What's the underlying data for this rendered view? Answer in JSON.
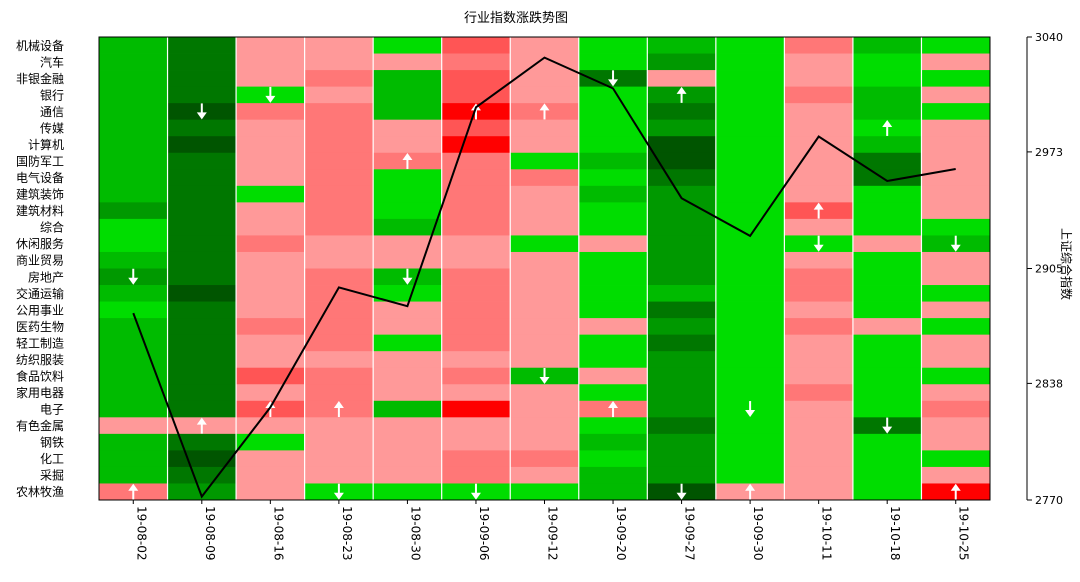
{
  "chart_data": {
    "type": "heatmap",
    "title": "行业指数涨跌势图",
    "ylabel_right": "上证综合指数",
    "x_labels": [
      "19-08-02",
      "19-08-09",
      "19-08-16",
      "19-08-23",
      "19-08-30",
      "19-09-06",
      "19-09-12",
      "19-09-20",
      "19-09-27",
      "19-09-30",
      "19-10-11",
      "19-10-18",
      "19-10-25"
    ],
    "industries": [
      "机械设备",
      "汽车",
      "非银金融",
      "银行",
      "通信",
      "传媒",
      "计算机",
      "国防军工",
      "电气设备",
      "建筑装饰",
      "建筑材料",
      "综合",
      "休闲服务",
      "商业贸易",
      "房地产",
      "交通运输",
      "公用事业",
      "医药生物",
      "轻工制造",
      "纺织服装",
      "食品饮料",
      "家用电器",
      "电子",
      "有色金属",
      "钢铁",
      "化工",
      "采掘",
      "农林牧渔"
    ],
    "right_axis": {
      "ticks": [
        3040,
        2973,
        2905,
        2838,
        2770
      ],
      "ylim": [
        2770,
        3040
      ]
    },
    "color_scale": {
      "G1": "#00ff00",
      "G2": "#00dd00",
      "G3": "#00bb00",
      "G4": "#009900",
      "G5": "#007700",
      "G6": "#005500",
      "R1": "#ff9999",
      "R2": "#ff7777",
      "R3": "#ff5555",
      "R4": "#ff3333",
      "R5": "#ff0000"
    },
    "cell_levels": [
      [
        "G3",
        "G3",
        "G3",
        "G3",
        "G3",
        "G3",
        "G3",
        "G3",
        "G3",
        "G3",
        "G4",
        "G2",
        "G2",
        "G3",
        "G4",
        "G3",
        "G2",
        "G3",
        "G3",
        "G3",
        "G3",
        "G3",
        "G3",
        "R1",
        "G3",
        "G3",
        "G3",
        "R2"
      ],
      [
        "G5",
        "G5",
        "G5",
        "G5",
        "G6",
        "G5",
        "G6",
        "G5",
        "G5",
        "G5",
        "G5",
        "G5",
        "G5",
        "G5",
        "G5",
        "G6",
        "G5",
        "G5",
        "G5",
        "G5",
        "G5",
        "G5",
        "G5",
        "R1",
        "G5",
        "G6",
        "G5",
        "G4"
      ],
      [
        "R1",
        "R1",
        "R1",
        "G2",
        "R2",
        "R1",
        "R1",
        "R1",
        "R1",
        "G2",
        "R1",
        "R1",
        "R2",
        "R1",
        "R1",
        "R1",
        "R1",
        "R2",
        "R1",
        "R1",
        "R3",
        "R1",
        "R3",
        "R1",
        "G2",
        "R1",
        "R1",
        "R1"
      ],
      [
        "R1",
        "R1",
        "R2",
        "R1",
        "R2",
        "R2",
        "R2",
        "R2",
        "R2",
        "R2",
        "R2",
        "R2",
        "R1",
        "R1",
        "R2",
        "R2",
        "R2",
        "R2",
        "R2",
        "R1",
        "R2",
        "R2",
        "R2",
        "R1",
        "R1",
        "R1",
        "R1",
        "G2"
      ],
      [
        "G2",
        "R1",
        "G3",
        "G3",
        "G3",
        "R1",
        "R1",
        "R2",
        "G2",
        "G2",
        "G2",
        "G3",
        "R1",
        "R1",
        "G3",
        "G2",
        "R1",
        "R1",
        "G2",
        "R1",
        "R1",
        "R1",
        "G3",
        "R1",
        "R1",
        "R1",
        "R1",
        "G2"
      ],
      [
        "R3",
        "R2",
        "R3",
        "R3",
        "R5",
        "R3",
        "R5",
        "R2",
        "R2",
        "R2",
        "R2",
        "R2",
        "R1",
        "R1",
        "R2",
        "R2",
        "R2",
        "R2",
        "R2",
        "R1",
        "R2",
        "R1",
        "R5",
        "R1",
        "R1",
        "R2",
        "R2",
        "G2"
      ],
      [
        "R1",
        "R1",
        "R1",
        "R1",
        "R2",
        "R1",
        "R1",
        "G2",
        "R2",
        "R1",
        "R1",
        "R1",
        "G2",
        "R1",
        "R1",
        "R1",
        "R1",
        "R1",
        "R1",
        "R1",
        "G3",
        "R1",
        "R1",
        "R1",
        "R1",
        "R2",
        "R1",
        "G2"
      ],
      [
        "G2",
        "G2",
        "G5",
        "G2",
        "G2",
        "G2",
        "G2",
        "G3",
        "G2",
        "G3",
        "G2",
        "G2",
        "R1",
        "G2",
        "G2",
        "G2",
        "G2",
        "R1",
        "G2",
        "G2",
        "R1",
        "G2",
        "R2",
        "G2",
        "G3",
        "G2",
        "G3",
        "G3"
      ],
      [
        "G3",
        "G4",
        "R1",
        "G4",
        "G5",
        "G4",
        "G6",
        "G6",
        "G5",
        "G4",
        "G4",
        "G4",
        "G4",
        "G4",
        "G4",
        "G3",
        "G5",
        "G4",
        "G5",
        "G4",
        "G4",
        "G4",
        "G4",
        "G5",
        "G4",
        "G4",
        "G4",
        "G6"
      ],
      [
        "G2",
        "G2",
        "G2",
        "G2",
        "G2",
        "G2",
        "G2",
        "G2",
        "G2",
        "G2",
        "G2",
        "G2",
        "G2",
        "G2",
        "G2",
        "G2",
        "G2",
        "G2",
        "G2",
        "G2",
        "G2",
        "G2",
        "G2",
        "G2",
        "G2",
        "G2",
        "G2",
        "R1"
      ],
      [
        "R2",
        "R1",
        "R1",
        "R2",
        "R1",
        "R1",
        "R1",
        "R1",
        "R1",
        "R1",
        "R3",
        "R1",
        "G2",
        "R1",
        "R2",
        "R2",
        "R1",
        "R2",
        "R1",
        "R1",
        "R1",
        "R2",
        "R1",
        "R1",
        "R1",
        "R1",
        "R1",
        "R1"
      ],
      [
        "G3",
        "G2",
        "G2",
        "G3",
        "G3",
        "G2",
        "G3",
        "G5",
        "G5",
        "G2",
        "G2",
        "G2",
        "R1",
        "G2",
        "G2",
        "G2",
        "G2",
        "R1",
        "G2",
        "G2",
        "G2",
        "G2",
        "G2",
        "G5",
        "G2",
        "G2",
        "G2",
        "G2"
      ],
      [
        "G2",
        "R1",
        "G2",
        "R1",
        "G2",
        "R1",
        "R1",
        "R1",
        "R1",
        "R1",
        "R1",
        "G2",
        "G3",
        "R1",
        "R1",
        "G2",
        "R1",
        "G2",
        "R1",
        "R1",
        "G2",
        "R1",
        "R2",
        "R1",
        "R1",
        "G2",
        "R1",
        "R5"
      ]
    ],
    "arrows": [
      {
        "col": 0,
        "row": 14,
        "dir": "down"
      },
      {
        "col": 0,
        "row": 27,
        "dir": "up"
      },
      {
        "col": 1,
        "row": 4,
        "dir": "down"
      },
      {
        "col": 1,
        "row": 23,
        "dir": "up"
      },
      {
        "col": 2,
        "row": 3,
        "dir": "down"
      },
      {
        "col": 2,
        "row": 22,
        "dir": "up"
      },
      {
        "col": 3,
        "row": 22,
        "dir": "up"
      },
      {
        "col": 3,
        "row": 27,
        "dir": "down"
      },
      {
        "col": 4,
        "row": 7,
        "dir": "up"
      },
      {
        "col": 4,
        "row": 14,
        "dir": "down"
      },
      {
        "col": 5,
        "row": 4,
        "dir": "up"
      },
      {
        "col": 5,
        "row": 27,
        "dir": "down"
      },
      {
        "col": 6,
        "row": 4,
        "dir": "up"
      },
      {
        "col": 6,
        "row": 20,
        "dir": "down"
      },
      {
        "col": 7,
        "row": 2,
        "dir": "down"
      },
      {
        "col": 7,
        "row": 22,
        "dir": "up"
      },
      {
        "col": 8,
        "row": 3,
        "dir": "up"
      },
      {
        "col": 8,
        "row": 27,
        "dir": "down"
      },
      {
        "col": 9,
        "row": 22,
        "dir": "down"
      },
      {
        "col": 9,
        "row": 27,
        "dir": "up"
      },
      {
        "col": 10,
        "row": 10,
        "dir": "up"
      },
      {
        "col": 10,
        "row": 12,
        "dir": "down"
      },
      {
        "col": 11,
        "row": 5,
        "dir": "up"
      },
      {
        "col": 11,
        "row": 23,
        "dir": "down"
      },
      {
        "col": 12,
        "row": 12,
        "dir": "down"
      },
      {
        "col": 12,
        "row": 27,
        "dir": "up"
      }
    ],
    "index_line": {
      "name": "上证综合指数",
      "values": [
        2879,
        2772,
        2824,
        2894,
        2883,
        2999,
        3028,
        3010,
        2946,
        2924,
        2982,
        2956,
        2963
      ]
    }
  }
}
